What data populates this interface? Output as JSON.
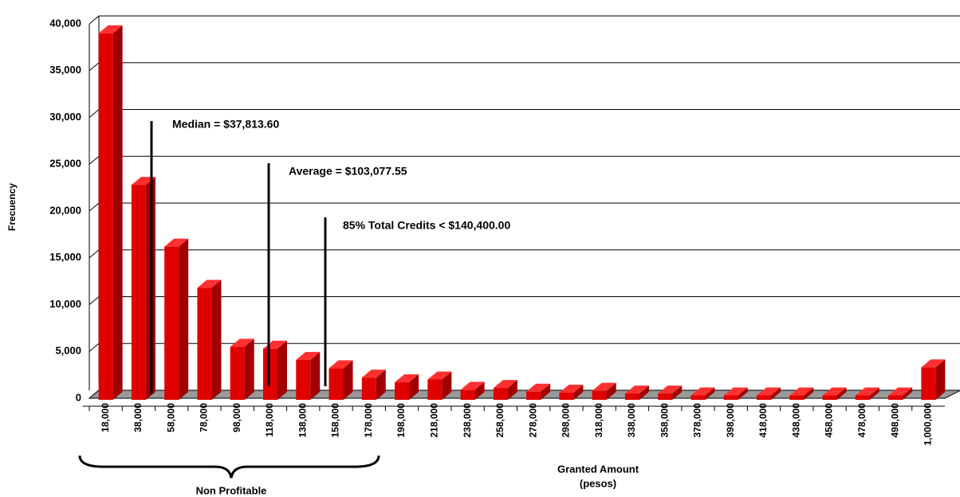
{
  "chart_data": {
    "type": "bar",
    "y_label": "Frecuency",
    "x_label": [
      "Granted Amount",
      "(pesos)"
    ],
    "annotations": [
      "Median = $37,813.60",
      "Average = $103,077.55",
      "85% Total Credits < $140,400.00"
    ],
    "group_label": "Non Profitable",
    "categories": [
      "18,000",
      "38,000",
      "58,000",
      "78,000",
      "98,000",
      "118,000",
      "138,000",
      "158,000",
      "178,000",
      "198,000",
      "218,000",
      "238,000",
      "258,000",
      "278,000",
      "298,000",
      "318,000",
      "338,000",
      "358,000",
      "378,000",
      "398,000",
      "418,000",
      "438,000",
      "458,000",
      "478,000",
      "498,000",
      "1,000,000"
    ],
    "values": [
      39000,
      22800,
      16200,
      11800,
      5500,
      5300,
      4100,
      3200,
      2200,
      1700,
      2000,
      900,
      1100,
      700,
      600,
      800,
      500,
      500,
      300,
      300,
      300,
      300,
      300,
      300,
      300,
      3300
    ],
    "color": "#e00000",
    "ylim": [
      0,
      40000
    ],
    "yticks": [
      0,
      {
        "value": 5000,
        "label": "5,000"
      },
      {
        "value": 10000,
        "label": "10,000"
      },
      {
        "value": 15000,
        "label": "15,000"
      },
      {
        "value": 20000,
        "label": "20,000"
      },
      {
        "value": 25000,
        "label": "25,000"
      },
      {
        "value": 30000,
        "label": "30,000"
      },
      {
        "value": 35000,
        "label": "35,000"
      },
      {
        "value": 40000,
        "label": "40,000"
      }
    ],
    "grid": true
  }
}
